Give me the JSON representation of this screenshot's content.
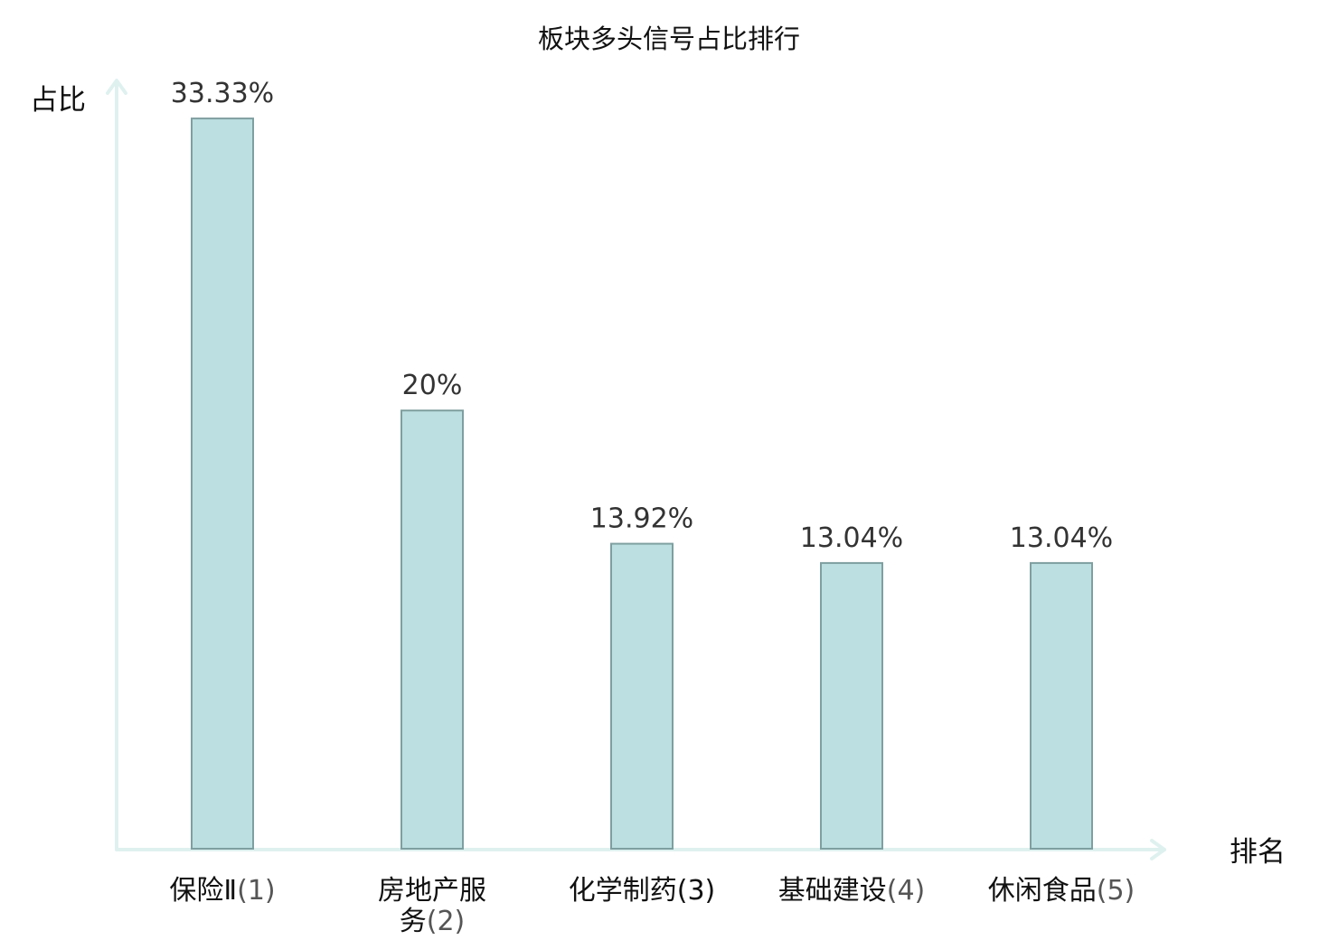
{
  "chart_data": {
    "type": "bar",
    "title": "板块多头信号占比排行",
    "ylabel": "占比",
    "xlabel": "排名",
    "ylim": [
      0,
      35
    ],
    "grid": false,
    "categories": [
      {
        "lines": [
          "保险Ⅱ"
        ],
        "rank": "(1)",
        "highlight": false
      },
      {
        "lines": [
          "房地产服",
          "务"
        ],
        "rank": "(2)",
        "highlight": false
      },
      {
        "lines": [
          "化学制药"
        ],
        "rank": "(3)",
        "highlight": true
      },
      {
        "lines": [
          "基础建设"
        ],
        "rank": "(4)",
        "highlight": false
      },
      {
        "lines": [
          "休闲食品"
        ],
        "rank": "(5)",
        "highlight": false
      }
    ],
    "values": [
      33.33,
      20,
      13.92,
      13.04,
      13.04
    ],
    "value_labels": [
      "33.33%",
      "20%",
      "13.92%",
      "13.04%",
      "13.04%"
    ]
  },
  "colors": {
    "bar_fill": "#bce0e2",
    "bar_stroke": "#7f9fa0",
    "axis": "#dff1ef",
    "highlight_text": "#e8000b",
    "value_text": "#333333"
  }
}
